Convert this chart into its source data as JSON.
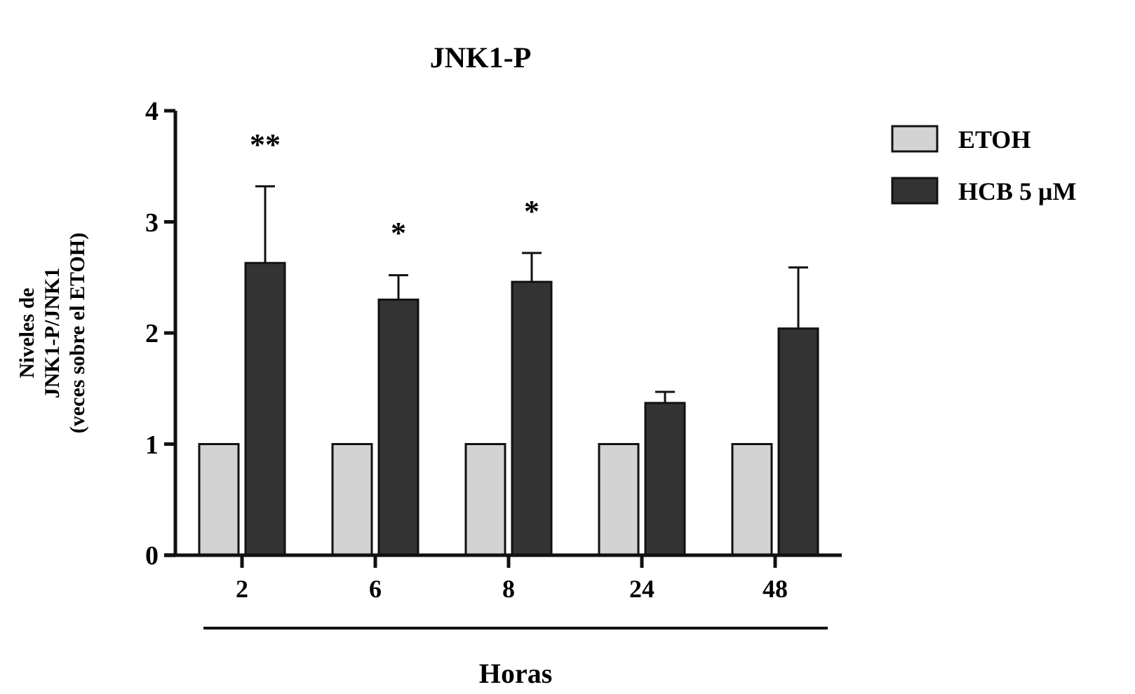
{
  "chart_data": {
    "type": "bar",
    "title": "JNK1-P",
    "xlabel": "Horas",
    "ylabel": "Niveles de\nJNK1-P/JNK1\n(veces sobre el ETOH)",
    "categories": [
      "2",
      "6",
      "8",
      "24",
      "48"
    ],
    "series": [
      {
        "name": "ETOH",
        "color": "#d3d3d3",
        "values": [
          1,
          1,
          1,
          1,
          1
        ]
      },
      {
        "name": "HCB 5 μM",
        "color": "#333333",
        "values": [
          2.63,
          2.3,
          2.46,
          1.37,
          2.04
        ],
        "errors": [
          [
            2.63,
            3.32
          ],
          [
            2.3,
            2.52
          ],
          [
            2.46,
            2.72
          ],
          [
            1.37,
            1.47
          ],
          [
            2.04,
            2.59
          ]
        ]
      }
    ],
    "ylim": [
      0,
      4
    ],
    "yticks": [
      0,
      1,
      2,
      3,
      4
    ],
    "grid": false,
    "legend": "right",
    "annotations": [
      "**",
      "*",
      "*"
    ]
  }
}
